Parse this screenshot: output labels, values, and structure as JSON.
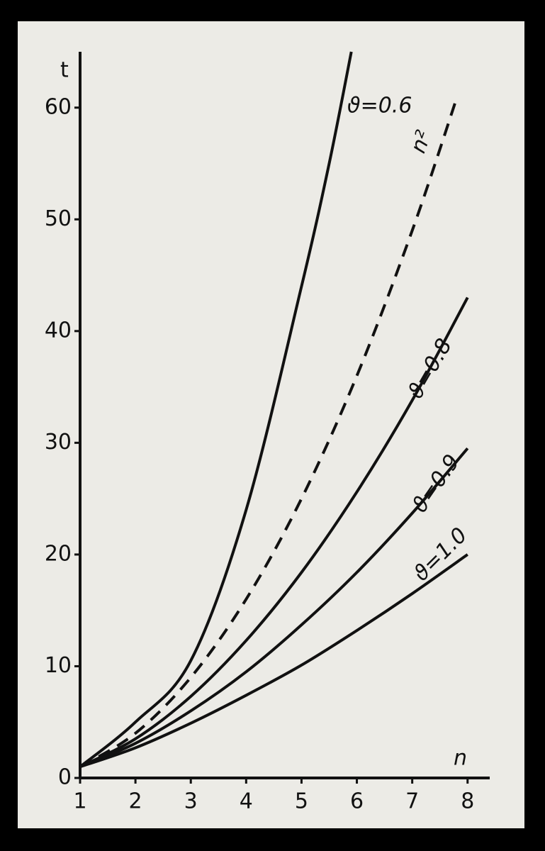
{
  "chart_data": {
    "type": "line",
    "x_label": "n",
    "y_label": "t",
    "xlim": [
      1,
      8.4
    ],
    "ylim": [
      0,
      65
    ],
    "xticks": [
      1,
      2,
      3,
      4,
      5,
      6,
      7,
      8
    ],
    "yticks": [
      0,
      10,
      20,
      30,
      40,
      50,
      60
    ],
    "series": [
      {
        "name": "ϑ=0.6",
        "color": "#111111",
        "dashed": false,
        "x": [
          1,
          2,
          3,
          4,
          5,
          5.5,
          5.9
        ],
        "values": [
          1,
          5,
          10.5,
          24,
          44,
          55,
          65
        ]
      },
      {
        "name": "n²",
        "color": "#111111",
        "dashed": true,
        "x": [
          1,
          2,
          3,
          4,
          5,
          6,
          7,
          7.8
        ],
        "values": [
          1,
          4,
          9,
          16,
          25,
          36,
          49,
          60.8
        ]
      },
      {
        "name": "ϑ=0.8",
        "color": "#111111",
        "dashed": false,
        "x": [
          1,
          2,
          3,
          4,
          5,
          6,
          7,
          8
        ],
        "values": [
          1,
          3.5,
          7.3,
          12.3,
          18.4,
          25.6,
          33.8,
          43
        ]
      },
      {
        "name": "ϑ=0.9",
        "color": "#111111",
        "dashed": false,
        "x": [
          1,
          2,
          3,
          4,
          5,
          6,
          7,
          8
        ],
        "values": [
          1,
          3.1,
          6,
          9.5,
          13.7,
          18.4,
          23.7,
          29.5
        ]
      },
      {
        "name": "ϑ=1.0",
        "color": "#111111",
        "dashed": false,
        "x": [
          1,
          2,
          3,
          4,
          5,
          6,
          7,
          8
        ],
        "values": [
          1,
          2.7,
          4.9,
          7.4,
          10.1,
          13.2,
          16.5,
          20
        ]
      }
    ]
  }
}
